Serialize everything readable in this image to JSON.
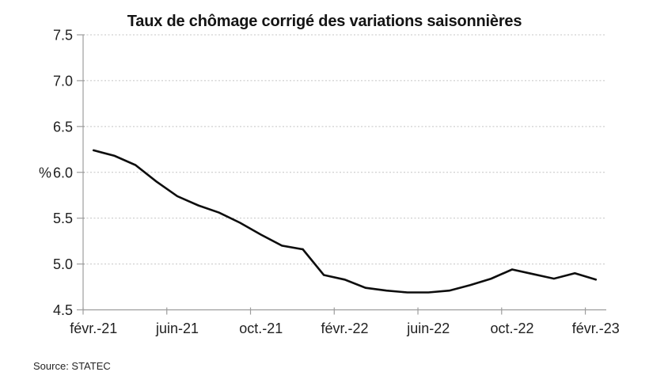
{
  "page": {
    "title": "Taux de chômage corrigé des variations saisonnières",
    "source_note": "Source: STATEC"
  },
  "chart_data": {
    "type": "line",
    "title": "Taux de chômage corrigé des variations saisonnières",
    "xlabel": "",
    "ylabel": "%",
    "ylim": [
      4.5,
      7.5
    ],
    "y_ticks": [
      4.5,
      5.0,
      5.5,
      6.0,
      6.5,
      7.0,
      7.5
    ],
    "y_tick_labels": [
      "4.5",
      "5.0",
      "5.5",
      "6.0",
      "6.5",
      "7.0",
      "7.5"
    ],
    "x_tick_labels": [
      "févr.-21",
      "juin-21",
      "oct.-21",
      "févr.-22",
      "juin-22",
      "oct.-22",
      "févr.-23"
    ],
    "x_tick_month_indexes": [
      0,
      4,
      8,
      12,
      16,
      20,
      24
    ],
    "n_points": 25,
    "series": [
      {
        "name": "Taux de chômage corrigé des variations saisonnières",
        "color": "#0d0d0d",
        "values": [
          6.24,
          6.18,
          6.08,
          5.9,
          5.74,
          5.64,
          5.56,
          5.45,
          5.32,
          5.2,
          5.16,
          4.88,
          4.83,
          4.74,
          4.71,
          4.69,
          4.69,
          4.71,
          4.77,
          4.84,
          4.94,
          4.89,
          4.84,
          4.9,
          4.83
        ]
      }
    ],
    "grid": {
      "horizontal": true,
      "style": "dotted",
      "color": "#c4c4c4"
    },
    "axis_color": "#9d9d9d",
    "text_color": "#212121",
    "legend": "none"
  }
}
